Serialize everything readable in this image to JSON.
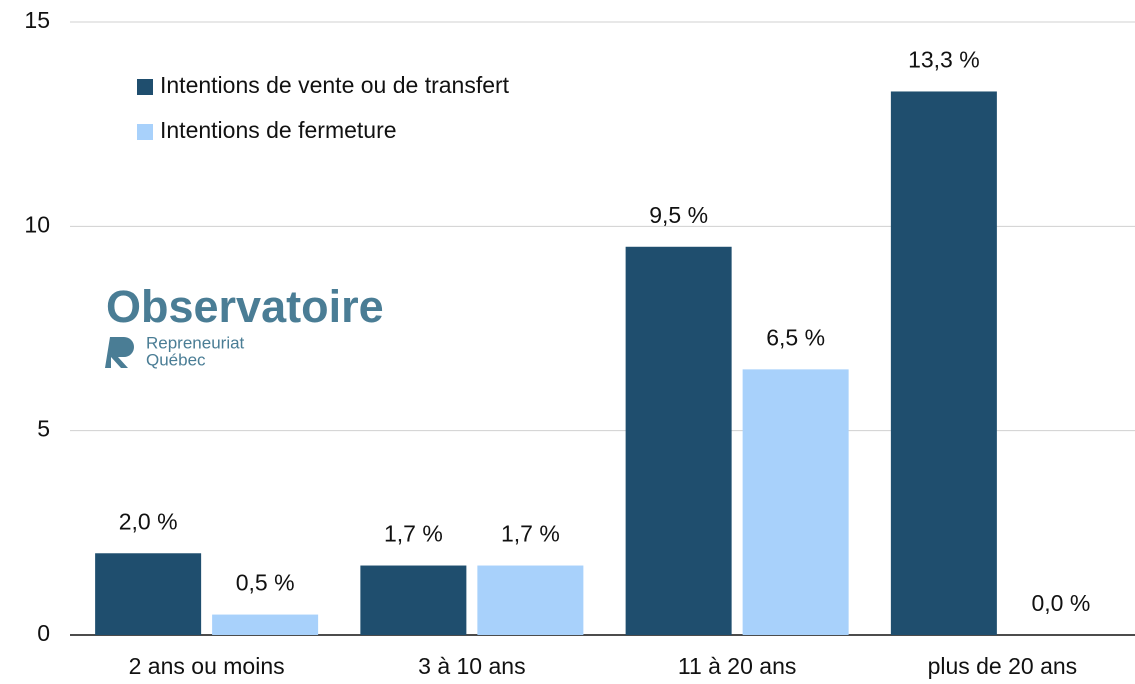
{
  "chart_data": {
    "type": "bar",
    "categories": [
      "2 ans ou moins",
      "3 à 10 ans",
      "11 à 20 ans",
      "plus de 20 ans"
    ],
    "series": [
      {
        "name": "Intentions de vente ou de transfert",
        "color": "#1f4e6e",
        "values": [
          2.0,
          1.7,
          9.5,
          13.3
        ],
        "value_labels": [
          "2,0 %",
          "1,7 %",
          "9,5 %",
          "13,3 %"
        ]
      },
      {
        "name": "Intentions de fermeture",
        "color": "#a8d1fb",
        "values": [
          0.5,
          1.7,
          6.5,
          0.0
        ],
        "value_labels": [
          "0,5 %",
          "1,7 %",
          "6,5 %",
          "0,0 %"
        ]
      }
    ],
    "ylim": [
      0,
      15
    ],
    "yticks": [
      0,
      5,
      10,
      15
    ],
    "grid": true,
    "legend": "upper left"
  },
  "logo": {
    "name": "Observatoire",
    "line1": "Repreneuriat",
    "line2": "Québec"
  }
}
